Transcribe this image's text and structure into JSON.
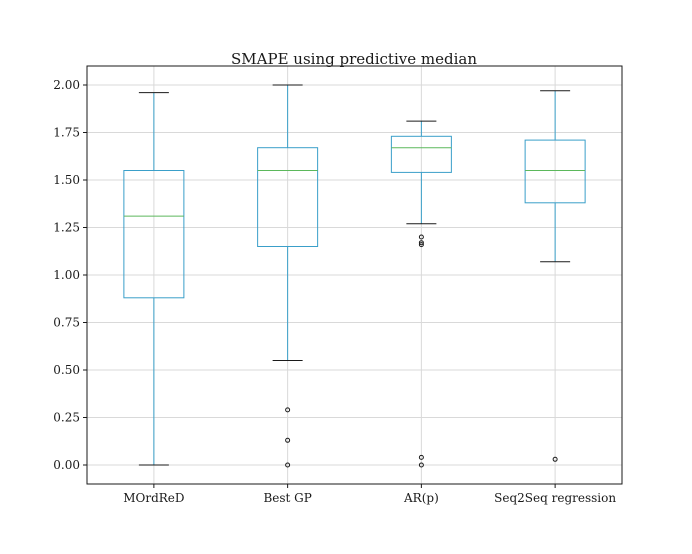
{
  "chart_data": {
    "type": "box",
    "title": "SMAPE using predictive median",
    "xlabel": "",
    "ylabel": "",
    "ylim": [
      -0.1,
      2.1
    ],
    "yticks": [
      0.0,
      0.25,
      0.5,
      0.75,
      1.0,
      1.25,
      1.5,
      1.75,
      2.0
    ],
    "ytick_labels": [
      "0.00",
      "0.25",
      "0.50",
      "0.75",
      "1.00",
      "1.25",
      "1.50",
      "1.75",
      "2.00"
    ],
    "grid": true,
    "categories": [
      "MOrdReD",
      "Best GP",
      "AR(p)",
      "Seq2Seq regression"
    ],
    "boxes": [
      {
        "label": "MOrdReD",
        "whisker_low": 0.0,
        "q1": 0.88,
        "median": 1.31,
        "q3": 1.55,
        "whisker_high": 1.96,
        "outliers": []
      },
      {
        "label": "Best GP",
        "whisker_low": 0.55,
        "q1": 1.15,
        "median": 1.55,
        "q3": 1.67,
        "whisker_high": 2.0,
        "outliers": [
          0.29,
          0.13,
          0.0
        ]
      },
      {
        "label": "AR(p)",
        "whisker_low": 1.27,
        "q1": 1.54,
        "median": 1.67,
        "q3": 1.73,
        "whisker_high": 1.81,
        "outliers": [
          1.2,
          1.17,
          1.16,
          0.04,
          0.0
        ]
      },
      {
        "label": "Seq2Seq regression",
        "whisker_low": 1.07,
        "q1": 1.38,
        "median": 1.55,
        "q3": 1.71,
        "whisker_high": 1.97,
        "outliers": [
          0.03
        ]
      }
    ],
    "colors": {
      "box": "#3a9fc9",
      "median": "#5cb85c",
      "whisker": "#3a9fc9",
      "cap": "#1a1a1a",
      "outlier": "#1a1a1a",
      "grid": "#d9d9d9",
      "frame": "#1a1a1a"
    }
  }
}
